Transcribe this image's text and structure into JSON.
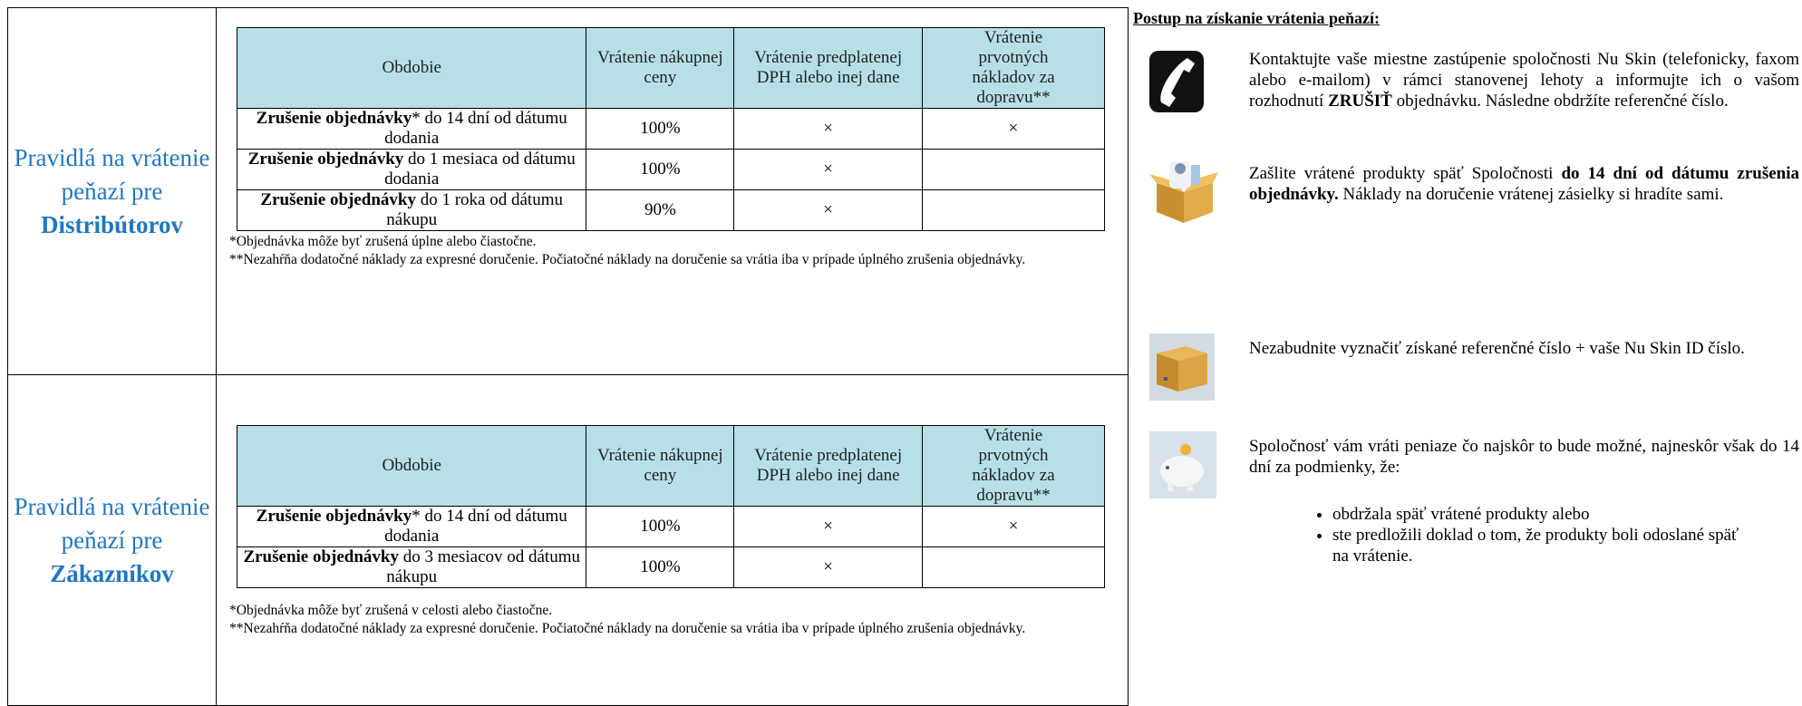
{
  "sections": [
    {
      "label": "Pravidlá na vrátenie peňazí pre",
      "label_bold": "Distribútorov",
      "table": {
        "headers": [
          "Obdobie",
          "Vrátenie nákupnej ceny",
          "Vrátenie predplatenej DPH alebo inej dane",
          "Vrátenie prvotných nákladov za dopravu**"
        ],
        "rows": [
          {
            "period": [
              {
                "text": "Zrušenie objednávky",
                "bold": true
              },
              {
                "text": "* do 14 dní od dátumu dodania",
                "bold": false
              }
            ],
            "price": "100%",
            "tax": "×",
            "shipping": "×"
          },
          {
            "period": [
              {
                "text": "Zrušenie objednávky",
                "bold": true
              },
              {
                "text": " do 1 mesiaca od dátumu dodania",
                "bold": false
              }
            ],
            "price": "100%",
            "tax": "×",
            "shipping": null
          },
          {
            "period": [
              {
                "text": "Zrušenie objednávky",
                "bold": true
              },
              {
                "text": " do 1 roka od dátumu nákupu",
                "bold": false
              }
            ],
            "price": "90%",
            "tax": "×",
            "shipping": null
          }
        ]
      },
      "notes": [
        "*Objednávka môže byť zrušená úplne alebo čiastočne.",
        "**Nezahŕňa dodatočné náklady za expresné doručenie. Počiatočné náklady na doručenie sa vrátia iba v prípade úplného zrušenia objednávky."
      ]
    },
    {
      "label": "Pravidlá na vrátenie peňazí pre",
      "label_bold": "Zákazníkov",
      "table": {
        "headers": [
          "Obdobie",
          "Vrátenie nákupnej ceny",
          "Vrátenie predplatenej DPH alebo inej dane",
          "Vrátenie prvotných nákladov za dopravu**"
        ],
        "rows": [
          {
            "period": [
              {
                "text": "Zrušenie objednávky",
                "bold": true
              },
              {
                "text": "* do 14 dní od dátumu dodania",
                "bold": false
              }
            ],
            "price": "100%",
            "tax": "×",
            "shipping": "×"
          },
          {
            "period": [
              {
                "text": "Zrušenie objednávky",
                "bold": true
              },
              {
                "text": " do 3 mesiacov od dátumu nákupu",
                "bold": false
              }
            ],
            "price": "100%",
            "tax": "×",
            "shipping": null
          }
        ]
      },
      "notes": [
        "*Objednávka môže byť zrušená v celosti alebo čiastočne.",
        "**Nezahŕňa dodatočné náklady za expresné doručenie. Počiatočné náklady na doručenie sa vrátia iba v prípade úplného zrušenia objednávky."
      ]
    }
  ],
  "procedure": {
    "title": "Postup na získanie vrátenia peňazí:",
    "steps": [
      {
        "parts": [
          {
            "text": "Kontaktujte vaše miestne zastúpenie spoločnosti Nu Skin (telefonicky, faxom alebo e-mailom) v rámci stanovenej lehoty a informujte ich o vašom rozhodnutí ",
            "bold": false
          },
          {
            "text": "ZRUŠIŤ",
            "bold": true
          },
          {
            "text": " objednávku. Následne obdržíte referenčné číslo.",
            "bold": false
          }
        ]
      },
      {
        "parts": [
          {
            "text": "Zašlite vrátené produkty späť Spoločnosti ",
            "bold": false
          },
          {
            "text": "do 14 dní od dátumu zrušenia objednávky.",
            "bold": true
          },
          {
            "text": " Náklady na doručenie vrátenej zásielky si hradíte sami.",
            "bold": false
          }
        ]
      },
      {
        "parts": [
          {
            "text": "Nezabudnite vyznačiť získané referenčné číslo + vaše Nu Skin ID číslo.",
            "bold": false
          }
        ]
      },
      {
        "parts": [
          {
            "text": "Spoločnosť vám vráti peniaze čo najskôr to bude možné, najneskôr však do 14 dní za podmienky, že:",
            "bold": false
          }
        ]
      }
    ],
    "bullets": [
      "obdržala späť vrátené produkty alebo",
      "ste predložili doklad o tom, že produkty boli odoslané späť na vrátenie."
    ]
  }
}
